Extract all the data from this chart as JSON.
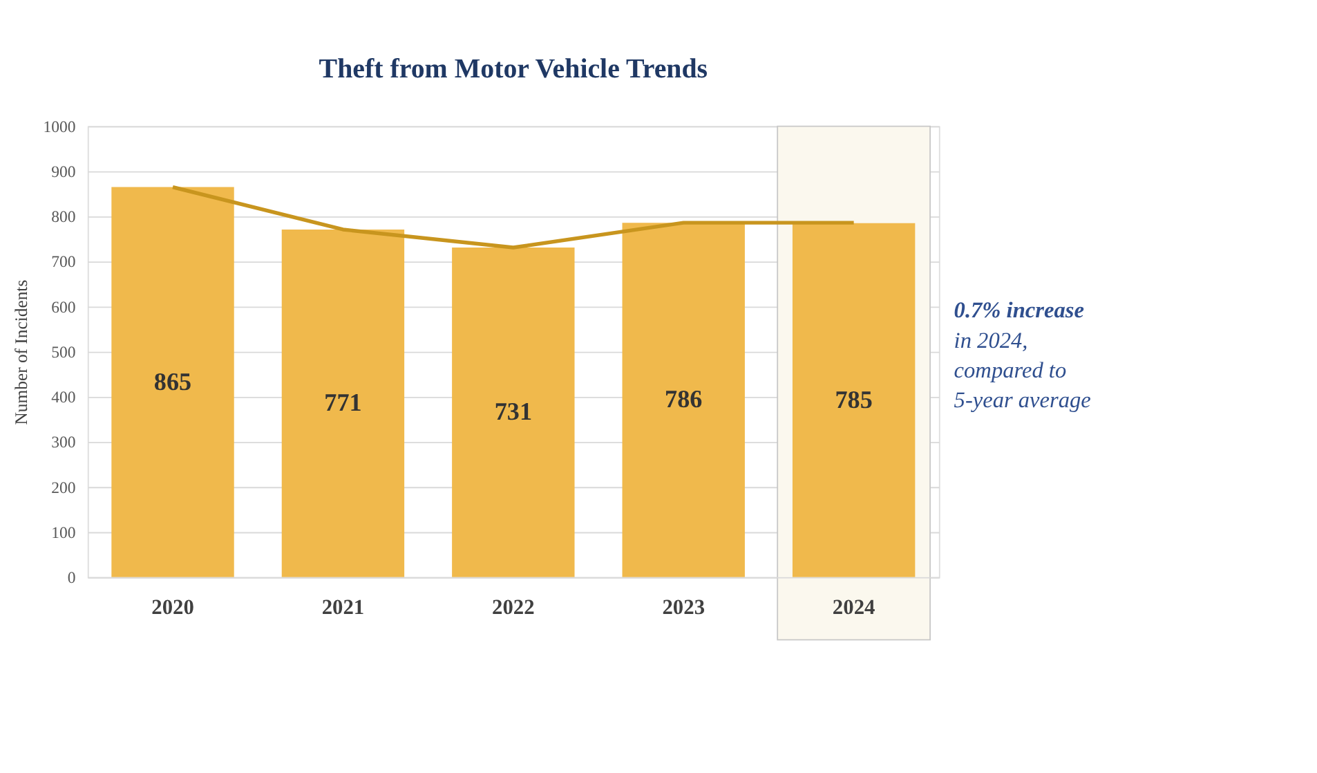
{
  "chart_data": {
    "type": "bar",
    "title": "Theft from Motor Vehicle Trends",
    "ylabel": "Number of Incidents",
    "categories": [
      "2020",
      "2021",
      "2022",
      "2023",
      "2024"
    ],
    "series": [
      {
        "color": "#f0b94c",
        "values": [
          865,
          771,
          731,
          786,
          785
        ],
        "value_labels": [
          "865",
          "771",
          "731",
          "786",
          "785"
        ]
      },
      {
        "type": "line",
        "color": "#c8951e",
        "values": [
          865,
          771,
          731,
          786,
          786
        ]
      }
    ],
    "ylim": [
      0,
      1000
    ],
    "yticks": [
      0,
      100,
      200,
      300,
      400,
      500,
      600,
      700,
      800,
      900,
      1000
    ],
    "grid": "y",
    "bands": [
      {
        "axis": "x",
        "from": "2024",
        "to": "2024",
        "color": "#fbf8ee"
      }
    ],
    "annotations": [
      "0.7% increase",
      "in 2024, compared to 5-year average"
    ]
  }
}
